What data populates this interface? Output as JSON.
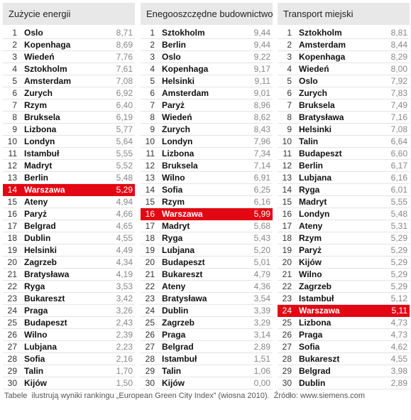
{
  "tables": [
    {
      "title": "Zużycie energii",
      "rows": [
        {
          "rank": "1",
          "city": "Oslo",
          "score": "8,71"
        },
        {
          "rank": "2",
          "city": "Kopenhaga",
          "score": "8,69"
        },
        {
          "rank": "3",
          "city": "Wiedeń",
          "score": "7,76"
        },
        {
          "rank": "4",
          "city": "Sztokholm",
          "score": "7,61"
        },
        {
          "rank": "5",
          "city": "Amsterdam",
          "score": "7,08"
        },
        {
          "rank": "6",
          "city": "Zurych",
          "score": "6,92"
        },
        {
          "rank": "7",
          "city": "Rzym",
          "score": "6,40"
        },
        {
          "rank": "8",
          "city": "Bruksela",
          "score": "6,19"
        },
        {
          "rank": "9",
          "city": "Lizbona",
          "score": "5,77"
        },
        {
          "rank": "10",
          "city": "Londyn",
          "score": "5,64"
        },
        {
          "rank": "11",
          "city": "Istambuł",
          "score": "5,55"
        },
        {
          "rank": "12",
          "city": "Madryt",
          "score": "5,52"
        },
        {
          "rank": "13",
          "city": "Berlin",
          "score": "5,48"
        },
        {
          "rank": "14",
          "city": "Warszawa",
          "score": "5,29",
          "highlight": true
        },
        {
          "rank": "15",
          "city": "Ateny",
          "score": "4,94"
        },
        {
          "rank": "16",
          "city": "Paryż",
          "score": "4,66"
        },
        {
          "rank": "17",
          "city": "Belgrad",
          "score": "4,65"
        },
        {
          "rank": "18",
          "city": "Dublin",
          "score": "4,55"
        },
        {
          "rank": "19",
          "city": "Helsinki",
          "score": "4,49"
        },
        {
          "rank": "20",
          "city": "Zagrzeb",
          "score": "4,34"
        },
        {
          "rank": "21",
          "city": "Bratysława",
          "score": "4,19"
        },
        {
          "rank": "22",
          "city": "Ryga",
          "score": "3,53"
        },
        {
          "rank": "23",
          "city": "Bukareszt",
          "score": "3,42"
        },
        {
          "rank": "24",
          "city": "Praga",
          "score": "3,26"
        },
        {
          "rank": "25",
          "city": "Budapeszt",
          "score": "2,43"
        },
        {
          "rank": "26",
          "city": "Wilno",
          "score": "2,39"
        },
        {
          "rank": "27",
          "city": "Lubjana",
          "score": "2,23"
        },
        {
          "rank": "28",
          "city": "Sofia",
          "score": "2,16"
        },
        {
          "rank": "29",
          "city": "Talin",
          "score": "1,70"
        },
        {
          "rank": "30",
          "city": "Kijów",
          "score": "1,50"
        }
      ]
    },
    {
      "title": "Enegooszczędne budownictwo",
      "rows": [
        {
          "rank": "1",
          "city": "Sztokholm",
          "score": "9,44"
        },
        {
          "rank": "2",
          "city": "Berlin",
          "score": "9,44"
        },
        {
          "rank": "3",
          "city": "Oslo",
          "score": "9,22"
        },
        {
          "rank": "4",
          "city": "Kopenhaga",
          "score": "9,17"
        },
        {
          "rank": "5",
          "city": "Helsinki",
          "score": "9,11"
        },
        {
          "rank": "6",
          "city": "Amsterdam",
          "score": "9,01"
        },
        {
          "rank": "7",
          "city": "Paryż",
          "score": "8,96"
        },
        {
          "rank": "8",
          "city": "Wiedeń",
          "score": "8,62"
        },
        {
          "rank": "9",
          "city": "Zurych",
          "score": "8,43"
        },
        {
          "rank": "10",
          "city": "Londyn",
          "score": "7,96"
        },
        {
          "rank": "11",
          "city": "Lizbona",
          "score": "7,34"
        },
        {
          "rank": "12",
          "city": "Bruksela",
          "score": "7,14"
        },
        {
          "rank": "13",
          "city": "Wilno",
          "score": "6,91"
        },
        {
          "rank": "14",
          "city": "Sofia",
          "score": "6,25"
        },
        {
          "rank": "15",
          "city": "Rzym",
          "score": "6,16"
        },
        {
          "rank": "16",
          "city": "Warszawa",
          "score": "5,99",
          "highlight": true
        },
        {
          "rank": "17",
          "city": "Madryt",
          "score": "5,68"
        },
        {
          "rank": "18",
          "city": "Ryga",
          "score": "5,43"
        },
        {
          "rank": "19",
          "city": "Lubjana",
          "score": "5,20"
        },
        {
          "rank": "20",
          "city": "Budapeszt",
          "score": "5,01"
        },
        {
          "rank": "21",
          "city": "Bukareszt",
          "score": "4,79"
        },
        {
          "rank": "22",
          "city": "Ateny",
          "score": "4,36"
        },
        {
          "rank": "23",
          "city": "Bratysława",
          "score": "3,54"
        },
        {
          "rank": "24",
          "city": "Dublin",
          "score": "3,39"
        },
        {
          "rank": "25",
          "city": "Zagrzeb",
          "score": "3,29"
        },
        {
          "rank": "26",
          "city": "Praga",
          "score": "3,14"
        },
        {
          "rank": "27",
          "city": "Belgrad",
          "score": "2,89"
        },
        {
          "rank": "28",
          "city": "Istambuł",
          "score": "1,51"
        },
        {
          "rank": "29",
          "city": "Talin",
          "score": "1,06"
        },
        {
          "rank": "30",
          "city": "Kijów",
          "score": "0,00"
        }
      ]
    },
    {
      "title": "Transport miejski",
      "rows": [
        {
          "rank": "1",
          "city": "Sztokholm",
          "score": "8,81"
        },
        {
          "rank": "2",
          "city": "Amsterdam",
          "score": "8,44"
        },
        {
          "rank": "3",
          "city": "Kopenhaga",
          "score": "8,29"
        },
        {
          "rank": "4",
          "city": "Wiedeń",
          "score": "8,00"
        },
        {
          "rank": "5",
          "city": "Oslo",
          "score": "7,92"
        },
        {
          "rank": "6",
          "city": "Zurych",
          "score": "7,83"
        },
        {
          "rank": "7",
          "city": "Bruksela",
          "score": "7,49"
        },
        {
          "rank": "8",
          "city": "Bratysława",
          "score": "7,16"
        },
        {
          "rank": "9",
          "city": "Helsinki",
          "score": "7,08"
        },
        {
          "rank": "10",
          "city": "Talin",
          "score": "6,64"
        },
        {
          "rank": "11",
          "city": "Budapeszt",
          "score": "6,60"
        },
        {
          "rank": "12",
          "city": "Berlin",
          "score": "6,17"
        },
        {
          "rank": "13",
          "city": "Lubjana",
          "score": "6,16"
        },
        {
          "rank": "14",
          "city": "Ryga",
          "score": "6,01"
        },
        {
          "rank": "15",
          "city": "Madryt",
          "score": "5,55"
        },
        {
          "rank": "16",
          "city": "Londyn",
          "score": "5,48"
        },
        {
          "rank": "17",
          "city": "Ateny",
          "score": "5,31"
        },
        {
          "rank": "18",
          "city": "Rzym",
          "score": "5,29"
        },
        {
          "rank": "19",
          "city": "Paryż",
          "score": "5,29"
        },
        {
          "rank": "20",
          "city": "Kijów",
          "score": "5,29"
        },
        {
          "rank": "21",
          "city": "Wilno",
          "score": "5,29"
        },
        {
          "rank": "22",
          "city": "Zagrzeb",
          "score": "5,29"
        },
        {
          "rank": "23",
          "city": "Istambuł",
          "score": "5,12"
        },
        {
          "rank": "24",
          "city": "Warszawa",
          "score": "5,11",
          "highlight": true
        },
        {
          "rank": "25",
          "city": "Lizbona",
          "score": "4,73"
        },
        {
          "rank": "26",
          "city": "Praga",
          "score": "4,73"
        },
        {
          "rank": "27",
          "city": "Sofia",
          "score": "4,62"
        },
        {
          "rank": "28",
          "city": "Bukareszt",
          "score": "4,55"
        },
        {
          "rank": "29",
          "city": "Belgrad",
          "score": "3,98"
        },
        {
          "rank": "30",
          "city": "Dublin",
          "score": "2,89"
        }
      ]
    }
  ],
  "footer": "Tabele  ilustrują wyniki rankingu „European Green City Index” (wiosna 2010).  Źródło: www.siemens.com"
}
